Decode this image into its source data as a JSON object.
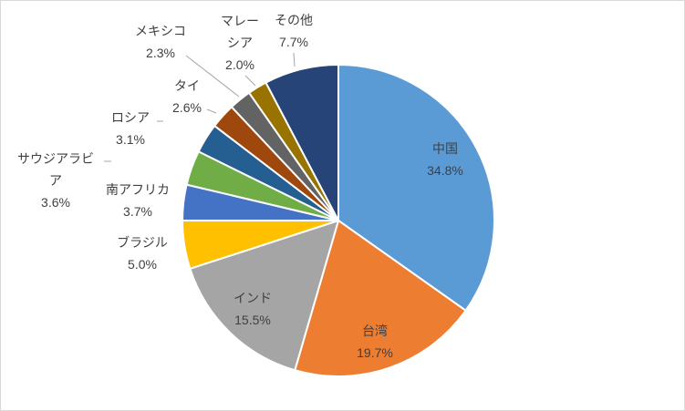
{
  "chart_data": {
    "type": "pie",
    "categories": [
      "中国",
      "台湾",
      "インド",
      "ブラジル",
      "南アフリカ",
      "サウジアラビア",
      "ロシア",
      "タイ",
      "メキシコ",
      "マレーシア",
      "その他"
    ],
    "values": [
      34.8,
      19.7,
      15.5,
      5.0,
      3.7,
      3.6,
      3.1,
      2.6,
      2.3,
      2.0,
      7.7
    ],
    "unit": "%",
    "colors": [
      "#5B9BD5",
      "#ED7D31",
      "#A5A5A5",
      "#FFC000",
      "#4472C4",
      "#70AD47",
      "#255E91",
      "#9E480E",
      "#636363",
      "#997300",
      "#264478"
    ],
    "label_text_color": "#404040",
    "slice_border_color": "#FFFFFF",
    "leader_line_color": "#A6A6A6"
  }
}
